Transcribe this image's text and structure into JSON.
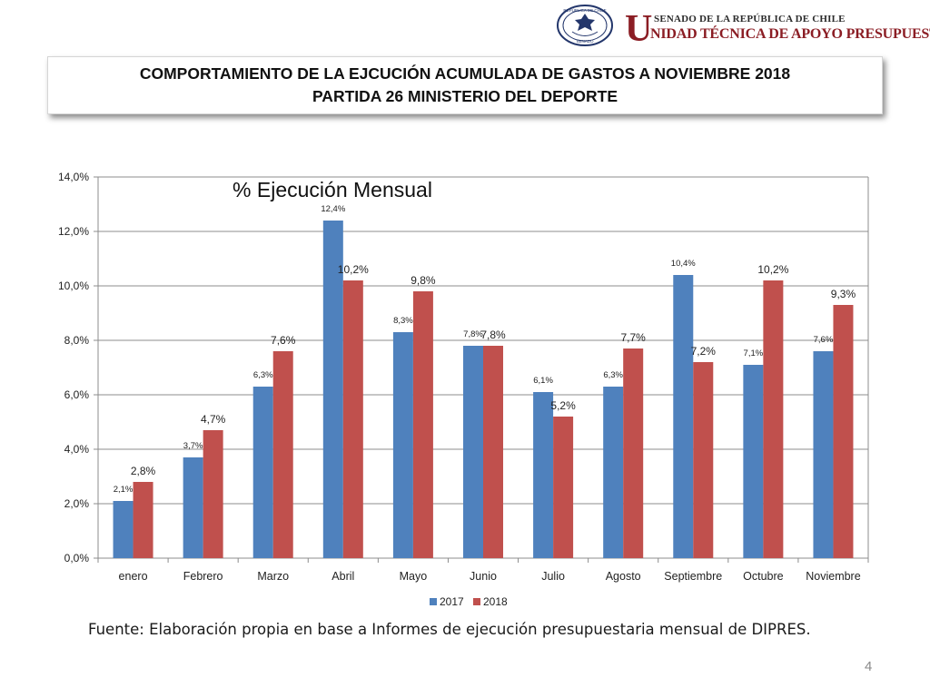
{
  "header": {
    "seal_top_text": "REPÚBLICA DE CHILE",
    "seal_bottom_text": "SENADO",
    "org_initial": "U",
    "org_line1": "SENADO DE LA REPÚBLICA DE CHILE",
    "org_line2": "NIDAD TÉCNICA DE APOYO PRESUPUESTARIO",
    "brand_color": "#8b1d24"
  },
  "title": {
    "line1": "COMPORTAMIENTO DE LA EJCUCIÓN ACUMULADA DE GASTOS A NOVIEMBRE 2018",
    "line2": "PARTIDA 26 MINISTERIO DEL DEPORTE"
  },
  "chart_data": {
    "type": "bar",
    "title": "% Ejecución Mensual",
    "categories": [
      "enero",
      "Febrero",
      "Marzo",
      "Abril",
      "Mayo",
      "Junio",
      "Julio",
      "Agosto",
      "Septiembre",
      "Octubre",
      "Noviembre"
    ],
    "series": [
      {
        "name": "2017",
        "color": "#4f81bd",
        "values": [
          2.1,
          3.7,
          6.3,
          12.4,
          8.3,
          7.8,
          6.1,
          6.3,
          10.4,
          7.1,
          7.6
        ],
        "labels": [
          "2,1%",
          "3,7%",
          "6,3%",
          "12,4%",
          "8,3%",
          "7,8%",
          "6,1%",
          "6,3%",
          "10,4%",
          "7,1%",
          "7,6%"
        ]
      },
      {
        "name": "2018",
        "color": "#c0504d",
        "values": [
          2.8,
          4.7,
          7.6,
          10.2,
          9.8,
          7.8,
          5.2,
          7.7,
          7.2,
          10.2,
          9.3
        ],
        "labels": [
          "2,8%",
          "4,7%",
          "7,6%",
          "10,2%",
          "9,8%",
          "7,8%",
          "5,2%",
          "7,7%",
          "7,2%",
          "10,2%",
          "9,3%"
        ]
      }
    ],
    "ylim": [
      0,
      14
    ],
    "yticks": [
      0,
      2,
      4,
      6,
      8,
      10,
      12,
      14
    ],
    "ytick_labels": [
      "0,0%",
      "2,0%",
      "4,0%",
      "6,0%",
      "8,0%",
      "10,0%",
      "12,0%",
      "14,0%"
    ],
    "grid": true,
    "legend_position": "bottom"
  },
  "footer": {
    "source": "Fuente: Elaboración propia en base  a Informes de ejecución presupuestaria mensual de DIPRES.",
    "page_number": "4"
  }
}
